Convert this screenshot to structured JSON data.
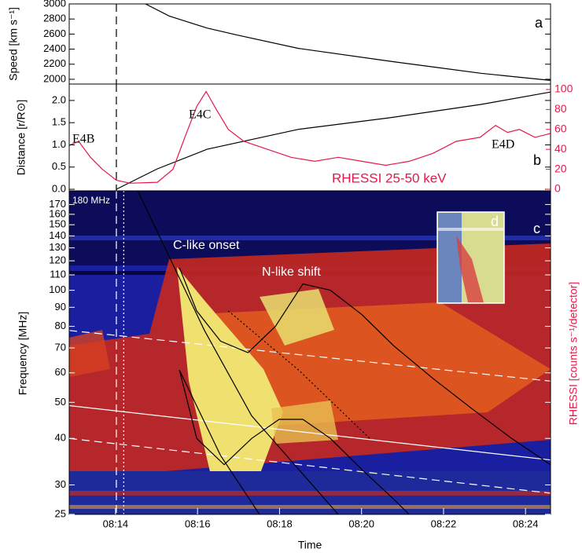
{
  "chart_data": [
    {
      "type": "line",
      "label": "a",
      "ylabel": "Speed [km s⁻¹]",
      "xlim": [
        12.87,
        24.61
      ],
      "ylim": [
        1937,
        3000
      ],
      "yticks": [
        2000,
        2200,
        2400,
        2600,
        2800,
        3000
      ],
      "series": [
        {
          "color": "#000000",
          "dash": "solid",
          "x": [
            14.73,
            15.31,
            16.23,
            16.94,
            18.46,
            20.68,
            21.8,
            22.91,
            24.61
          ],
          "values": [
            3000,
            2840,
            2680,
            2590,
            2410,
            2240,
            2160,
            2080,
            1985
          ]
        }
      ],
      "vlines": [
        {
          "x": 14.02,
          "dash": "dashed",
          "color": "#000000"
        }
      ]
    },
    {
      "type": "line",
      "label": "b",
      "ylabel": "Distance [r/R⊙]",
      "y2label": "RHESSI [counts s⁻¹/detector]",
      "annotations": [
        "E4B",
        "E4C",
        "E4D",
        "RHESSI 25-50 keV"
      ],
      "xlim": [
        12.87,
        24.61
      ],
      "ylim": [
        -0.035,
        2.37
      ],
      "yticks": [
        {
          "value": 0,
          "label": "0.0"
        },
        0.5,
        {
          "value": 1,
          "label": "1.0"
        },
        1.5,
        {
          "value": 2,
          "label": "2.0"
        }
      ],
      "y2lim": [
        -1.6,
        105.5
      ],
      "y2ticks": [
        0,
        20,
        40,
        60,
        80,
        100
      ],
      "y2color": "#e8174a",
      "series": [
        {
          "color": "#000000",
          "dash": "solid",
          "x": [
            14.02,
            15.02,
            16.23,
            18.46,
            20.68,
            22.91,
            24.61
          ],
          "values": [
            0,
            0.46,
            0.9,
            1.35,
            1.61,
            1.91,
            2.19
          ]
        },
        {
          "color": "#e8174a",
          "dash": "solid",
          "axis": "y2",
          "x": [
            12.87,
            13.1,
            13.39,
            13.68,
            14.02,
            14.35,
            15.02,
            15.4,
            15.69,
            15.98,
            16.21,
            16.46,
            16.75,
            17.13,
            17.71,
            18.28,
            18.86,
            19.43,
            20.01,
            20.59,
            21.16,
            21.74,
            22.31,
            22.89,
            23.27,
            23.56,
            23.85,
            24.23,
            24.61
          ],
          "values": [
            44,
            48,
            32,
            20,
            9,
            6,
            7,
            20,
            52,
            83,
            98,
            80,
            60,
            48,
            40,
            32,
            28,
            32,
            28,
            24,
            28,
            36,
            48,
            52,
            64,
            57,
            60,
            52,
            56
          ]
        }
      ],
      "vlines": [
        {
          "x": 14.02,
          "dash": "dashed",
          "color": "#000000"
        }
      ]
    },
    {
      "type": "line",
      "label": "c",
      "ylabel": "Frequency [MHz]",
      "xlabel": "Time",
      "annotations": [
        "180 MHz",
        "C-like onset",
        "N-like shift",
        "d"
      ],
      "log_y": true,
      "xlim": [
        12.87,
        24.61
      ],
      "ylim": [
        25,
        185
      ],
      "yticks": [
        25,
        30,
        40,
        50,
        60,
        70,
        80,
        90,
        100,
        110,
        120,
        130,
        140,
        150,
        160,
        170
      ],
      "xticks": [
        {
          "value": 14,
          "label": "08:14"
        },
        {
          "value": 16,
          "label": "08:16"
        },
        {
          "value": 18,
          "label": "08:18"
        },
        {
          "value": 20,
          "label": "08:20"
        },
        {
          "value": 22,
          "label": "08:22"
        },
        {
          "value": 24,
          "label": "08:24"
        }
      ],
      "series": [
        {
          "color": "#ffffff",
          "dash": "dashed",
          "x": [
            12.87,
            24.61
          ],
          "values": [
            78,
            57
          ]
        },
        {
          "color": "#ffffff",
          "dash": "solid",
          "x": [
            12.87,
            24.61
          ],
          "values": [
            49,
            35
          ]
        },
        {
          "color": "#ffffff",
          "dash": "dashed",
          "x": [
            12.87,
            24.61
          ],
          "values": [
            40,
            28.5
          ]
        },
        {
          "color": "#000000",
          "dash": "solid",
          "x": [
            14.54,
            16.17,
            17.32,
            19.43
          ],
          "values": [
            185,
            78,
            46,
            25
          ]
        },
        {
          "color": "#000000",
          "dash": "solid",
          "x": [
            15.56,
            16.56,
            17.51
          ],
          "values": [
            61,
            36,
            25
          ]
        },
        {
          "color": "#000000",
          "dash": "dotted",
          "x": [
            16.75,
            18.47,
            20.2
          ],
          "values": [
            88,
            61,
            40
          ]
        },
        {
          "color": "#000000",
          "dash": "solid",
          "x": [
            15.56,
            15.98,
            16.56,
            17.23,
            17.9,
            18.57,
            19.24,
            20.01,
            20.78,
            21.74,
            22.7,
            23.66,
            24.61
          ],
          "values": [
            115,
            88,
            73,
            68,
            80,
            104,
            100,
            86,
            71,
            58,
            48,
            40,
            34
          ]
        },
        {
          "color": "#000000",
          "dash": "solid",
          "x": [
            15.56,
            15.98,
            16.65,
            17.32,
            17.99,
            18.57,
            19.24,
            20.01,
            20.78,
            21.16
          ],
          "values": [
            61,
            40,
            34,
            40,
            45,
            45,
            40,
            33,
            27.5,
            25
          ]
        }
      ],
      "vlines": [
        {
          "x": 14.02,
          "dash": "dashed",
          "color": "#ffffff"
        },
        {
          "x": 14.2,
          "dash": "dotted",
          "color": "#ffffff"
        }
      ]
    }
  ]
}
